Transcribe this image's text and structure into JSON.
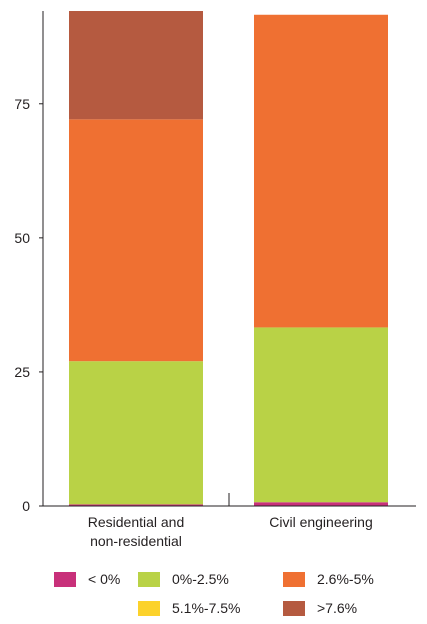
{
  "chart_data": {
    "type": "bar",
    "stacked": true,
    "categories": [
      [
        "Residential and",
        "non-residential"
      ],
      [
        "Civil engineering"
      ]
    ],
    "series": [
      {
        "name": "< 0%",
        "color": "#c8307a",
        "values": [
          0.3,
          0.7
        ]
      },
      {
        "name": "0%-2.5%",
        "color": "#b9d246",
        "values": [
          26.7,
          32.6
        ]
      },
      {
        "name": "5.1%-7.5%",
        "color": "#fcd22b",
        "values": [
          0,
          0
        ]
      },
      {
        "name": "2.6%-5%",
        "color": "#ef7032",
        "values": [
          45.1,
          58.3
        ]
      },
      {
        "name": ">7.6%",
        "color": "#b55a40",
        "values": [
          20.2,
          0
        ]
      }
    ],
    "ylim": [
      0,
      92.3
    ],
    "yticks": [
      0,
      25,
      50,
      75
    ],
    "grid": false,
    "legend_position": "bottom",
    "title": "",
    "xlabel": "",
    "ylabel": ""
  }
}
